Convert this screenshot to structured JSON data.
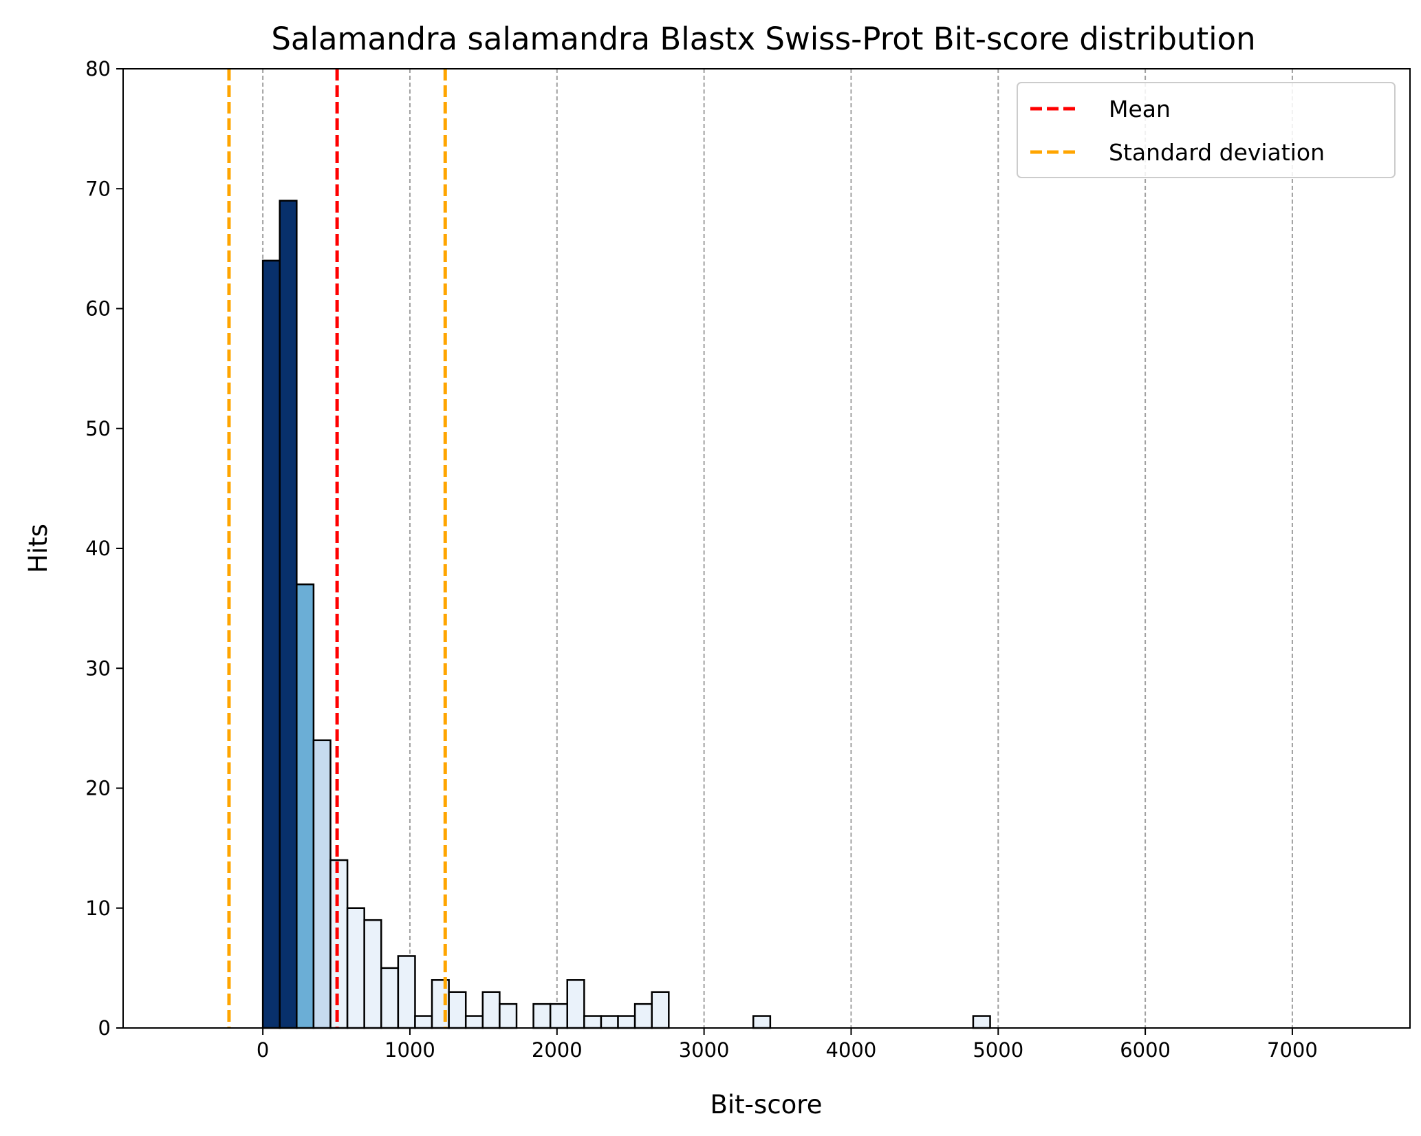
{
  "chart_data": {
    "type": "bar",
    "title": "Salamandra salamandra Blastx Swiss-Prot Bit-score distribution",
    "xlabel": "Bit-score",
    "ylabel": "Hits",
    "xlim": [
      -950,
      7800
    ],
    "ylim": [
      0,
      80
    ],
    "xticks": [
      0,
      1000,
      2000,
      3000,
      4000,
      5000,
      6000,
      7000
    ],
    "yticks": [
      0,
      10,
      20,
      30,
      40,
      50,
      60,
      70,
      80
    ],
    "bin_width": 115,
    "bin_start": 0,
    "values": [
      64,
      69,
      37,
      24,
      14,
      10,
      9,
      5,
      6,
      1,
      4,
      3,
      1,
      3,
      2,
      0,
      2,
      2,
      4,
      1,
      1,
      1,
      2,
      3,
      0,
      0,
      0,
      0,
      0,
      1,
      0,
      0,
      0,
      0,
      0,
      0,
      0,
      0,
      0,
      0,
      0,
      0,
      1,
      0,
      0,
      0,
      0,
      0,
      0,
      0
    ],
    "bar_colors": {
      "dark": "#08306b",
      "medium": "#6baed6",
      "light": "#c6dbef",
      "lightest": "#eaf2fa"
    },
    "mean": 505,
    "std_lines": [
      -230,
      1240
    ],
    "mean_color": "#ff0000",
    "std_color": "#ffa500",
    "grid": "x-dashed",
    "legend": {
      "placement": "top-right",
      "entries": [
        {
          "label": "Mean",
          "color": "#ff0000"
        },
        {
          "label": "Standard deviation",
          "color": "#ffa500"
        }
      ]
    }
  }
}
